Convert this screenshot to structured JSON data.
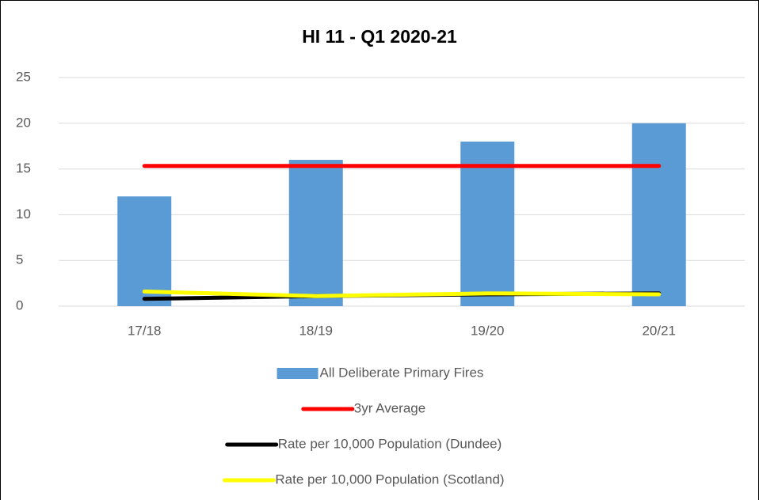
{
  "chart_data": {
    "type": "bar",
    "title": "HI 11 - Q1 2020-21",
    "categories": [
      "17/18",
      "18/19",
      "19/20",
      "20/21"
    ],
    "series": [
      {
        "name": "All Deliberate Primary Fires",
        "type": "bar",
        "color": "#5b9bd5",
        "values": [
          12,
          16,
          18,
          20
        ]
      },
      {
        "name": "3yr Average",
        "type": "line",
        "color": "#ff0000",
        "values": [
          15.33,
          15.33,
          15.33,
          15.33
        ]
      },
      {
        "name": "Rate per 10,000 Population (Dundee)",
        "type": "line",
        "color": "#000000",
        "values": [
          0.8,
          1.1,
          1.3,
          1.4
        ]
      },
      {
        "name": "Rate per 10,000 Population (Scotland)",
        "type": "line",
        "color": "#ffff00",
        "values": [
          1.6,
          1.1,
          1.4,
          1.3
        ]
      }
    ],
    "ylim": [
      0,
      25
    ],
    "yticks": [
      0,
      5,
      10,
      15,
      20,
      25
    ],
    "grid": true,
    "legend": "bottom"
  }
}
